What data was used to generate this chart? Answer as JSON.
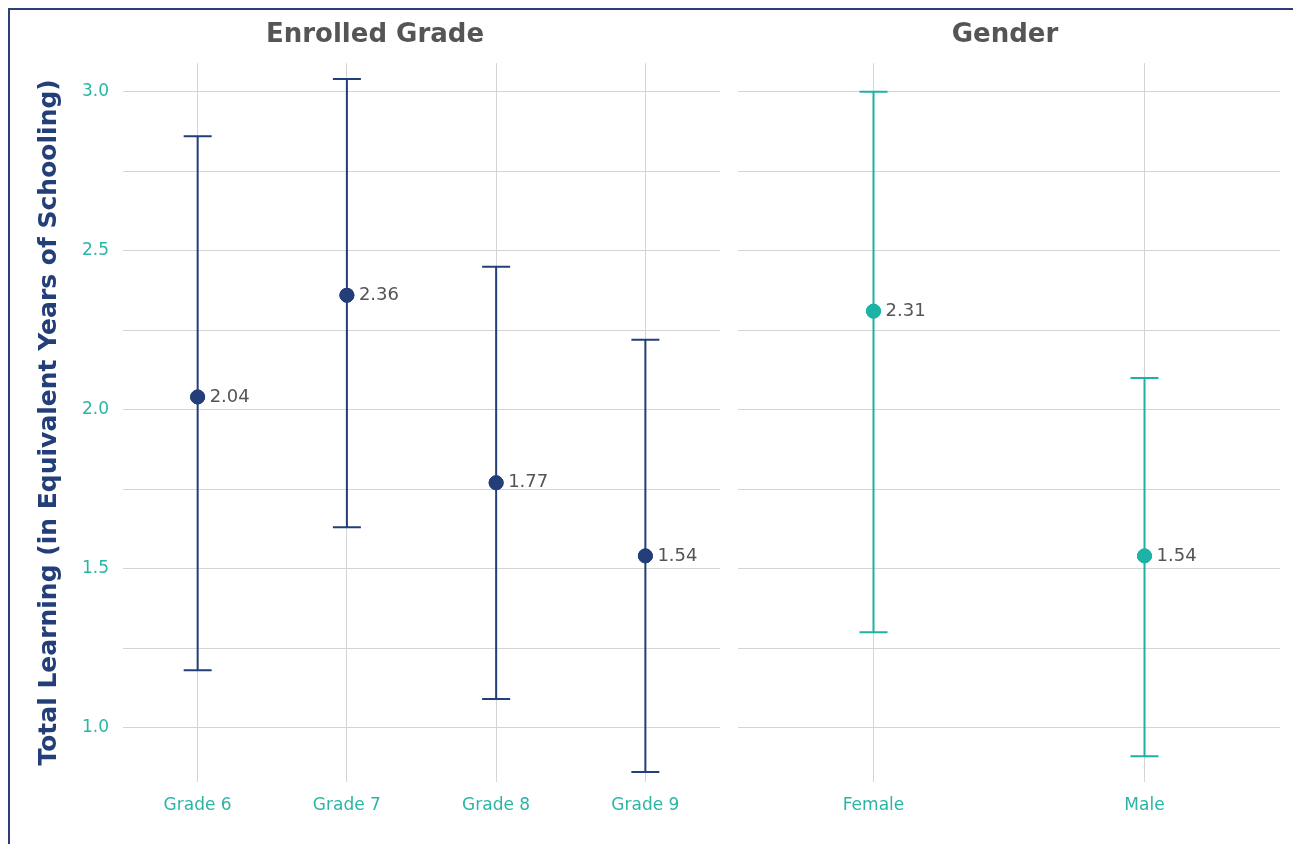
{
  "chart_data": [
    {
      "type": "scatter",
      "title": "Enrolled Grade",
      "ylabel": "Total Learning (in Equivalent Years of Schooling)",
      "categories": [
        "Grade 6",
        "Grade 7",
        "Grade 8",
        "Grade 9"
      ],
      "values": [
        2.04,
        2.36,
        1.77,
        1.54
      ],
      "errors": [
        [
          1.18,
          2.86
        ],
        [
          1.63,
          3.04
        ],
        [
          1.09,
          2.45
        ],
        [
          0.86,
          2.22
        ]
      ],
      "color": "#233e78",
      "marker": "circle",
      "data_labels": true,
      "ylim": [
        0.83,
        3.09
      ],
      "yticks": [
        {
          "value": 1.0,
          "label": "1.0"
        },
        {
          "value": 1.25,
          "label": null
        },
        {
          "value": 1.5,
          "label": "1.5"
        },
        {
          "value": 1.75,
          "label": null
        },
        {
          "value": 2.0,
          "label": "2.0"
        },
        {
          "value": 2.25,
          "label": null
        },
        {
          "value": 2.5,
          "label": "2.5"
        },
        {
          "value": 2.75,
          "label": null
        },
        {
          "value": 3.0,
          "label": "3.0"
        }
      ],
      "grid": true,
      "legend": false
    },
    {
      "type": "scatter",
      "title": "Gender",
      "categories": [
        "Female",
        "Male"
      ],
      "values": [
        2.31,
        1.54
      ],
      "errors": [
        [
          1.3,
          3.0
        ],
        [
          0.91,
          2.1
        ]
      ],
      "color": "#1cb3a6",
      "marker": "circle",
      "data_labels": true,
      "ylim": [
        0.83,
        3.09
      ],
      "yticks": [
        1,
        1.25,
        1.5,
        1.75,
        2,
        2.25,
        2.5,
        2.75,
        3
      ],
      "grid": true,
      "legend": false,
      "tick_labels": "x"
    }
  ]
}
